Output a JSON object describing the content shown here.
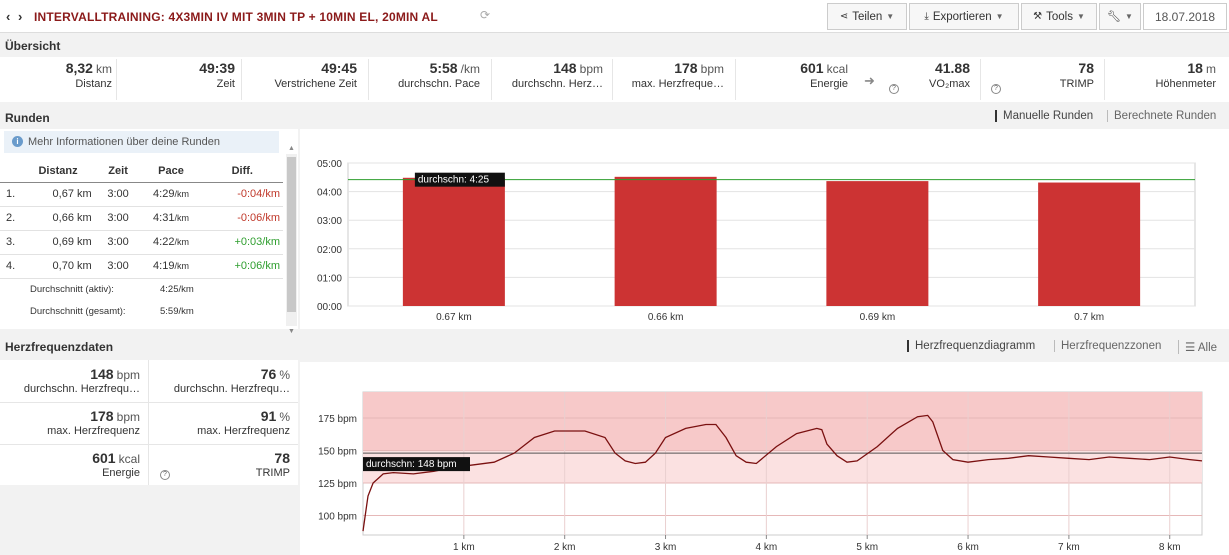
{
  "header": {
    "nav": "‹ ›",
    "title": "INTERVALLTRAINING: 4X3MIN IV MIT 3MIN TP + 10MIN EL, 20MIN AL",
    "share_label": "Teilen",
    "export_label": "Exportieren",
    "tools_label": "Tools",
    "date": "18.07.2018"
  },
  "overview": {
    "title": "Übersicht",
    "stats": [
      {
        "value": "8,32",
        "unit": "km",
        "label": "Distanz"
      },
      {
        "value": "49:39",
        "unit": "",
        "label": "Zeit"
      },
      {
        "value": "49:45",
        "unit": "",
        "label": "Verstrichene Zeit"
      },
      {
        "value": "5:58",
        "unit": "/km",
        "label": "durchschn. Pace"
      },
      {
        "value": "148",
        "unit": "bpm",
        "label": "durchschn. Herz…"
      },
      {
        "value": "178",
        "unit": "bpm",
        "label": "max. Herzfreque…"
      },
      {
        "value": "601",
        "unit": "kcal",
        "label": "Energie"
      },
      {
        "value": "41.88",
        "unit": "",
        "label": "VO₂max"
      },
      {
        "value": "78",
        "unit": "",
        "label": "TRIMP"
      },
      {
        "value": "18",
        "unit": "m",
        "label": "Höhenmeter"
      }
    ]
  },
  "laps": {
    "title": "Runden",
    "tab_manual": "Manuelle Runden",
    "tab_calculated": "Berechnete Runden",
    "info": "Mehr Informationen über deine Runden",
    "columns": [
      "Distanz",
      "Zeit",
      "Pace",
      "Diff."
    ],
    "rows": [
      {
        "n": "1.",
        "dist": "0,67 km",
        "time": "3:00",
        "pace": "4:29",
        "pace_unit": "/km",
        "diff": "-0:04/km"
      },
      {
        "n": "2.",
        "dist": "0,66 km",
        "time": "3:00",
        "pace": "4:31",
        "pace_unit": "/km",
        "diff": "-0:06/km"
      },
      {
        "n": "3.",
        "dist": "0,69 km",
        "time": "3:00",
        "pace": "4:22",
        "pace_unit": "/km",
        "diff": "+0:03/km"
      },
      {
        "n": "4.",
        "dist": "0,70 km",
        "time": "3:00",
        "pace": "4:19",
        "pace_unit": "/km",
        "diff": "+0:06/km"
      }
    ],
    "avg_active_label": "Durchschnitt (aktiv):",
    "avg_active_value": "4:25/km",
    "avg_total_label": "Durchschnitt (gesamt):",
    "avg_total_value": "5:59/km"
  },
  "hr": {
    "title": "Herzfrequenzdaten",
    "tab_diagram": "Herzfrequenzdiagramm",
    "tab_zones": "Herzfrequenzzonen",
    "tab_all": "Alle",
    "stats": [
      {
        "value": "148",
        "unit": "bpm",
        "label": "durchschn. Herzfrequ…"
      },
      {
        "value": "76",
        "unit": "%",
        "label": "durchschn. Herzfrequ…"
      },
      {
        "value": "178",
        "unit": "bpm",
        "label": "max. Herzfrequenz"
      },
      {
        "value": "91",
        "unit": "%",
        "label": "max. Herzfrequenz"
      },
      {
        "value": "601",
        "unit": "kcal",
        "label": "Energie"
      },
      {
        "value": "78",
        "unit": "",
        "label": "TRIMP"
      }
    ]
  },
  "chart_data": [
    {
      "type": "bar",
      "categories": [
        "0.67 km",
        "0.66 km",
        "0.69 km",
        "0.7 km"
      ],
      "values": [
        269,
        271,
        262,
        259
      ],
      "y_ticks": [
        "00:00",
        "01:00",
        "02:00",
        "03:00",
        "04:00",
        "05:00"
      ],
      "ylim": [
        0,
        300
      ],
      "average": 265,
      "average_label": "durchschn: 4:25",
      "bar_color": "#cc3333",
      "avg_line_color": "#2e9e2e"
    },
    {
      "type": "line",
      "x_ticks": [
        "1 km",
        "2 km",
        "3 km",
        "4 km",
        "5 km",
        "6 km",
        "7 km",
        "8 km"
      ],
      "y_ticks": [
        "100 bpm",
        "125 bpm",
        "150 bpm",
        "175 bpm"
      ],
      "xlim": [
        0,
        8.32
      ],
      "ylim": [
        85,
        195
      ],
      "average": 148,
      "average_label": "durchschn: 148 bpm",
      "x": [
        0,
        0.05,
        0.1,
        0.2,
        0.3,
        0.5,
        0.7,
        0.9,
        1.1,
        1.3,
        1.5,
        1.7,
        1.9,
        2.0,
        2.2,
        2.4,
        2.5,
        2.6,
        2.7,
        2.8,
        2.9,
        3.0,
        3.2,
        3.4,
        3.5,
        3.6,
        3.7,
        3.8,
        3.9,
        4.1,
        4.3,
        4.5,
        4.55,
        4.6,
        4.7,
        4.8,
        4.9,
        5.1,
        5.3,
        5.5,
        5.6,
        5.65,
        5.75,
        5.85,
        6.0,
        6.2,
        6.4,
        6.6,
        6.8,
        7.0,
        7.2,
        7.4,
        7.6,
        7.8,
        8.0,
        8.2,
        8.32
      ],
      "y": [
        88,
        115,
        125,
        132,
        133,
        132,
        134,
        137,
        139,
        141,
        148,
        160,
        165,
        165,
        165,
        160,
        148,
        142,
        140,
        141,
        148,
        160,
        167,
        170,
        170,
        160,
        146,
        141,
        140,
        153,
        163,
        167,
        166,
        155,
        146,
        141,
        142,
        153,
        167,
        176,
        177,
        172,
        150,
        143,
        141,
        143,
        144,
        146,
        145,
        144,
        143,
        145,
        144,
        143,
        145,
        143,
        142
      ],
      "line_color": "#7a1010",
      "zone_color": "#f7c9c9"
    }
  ]
}
